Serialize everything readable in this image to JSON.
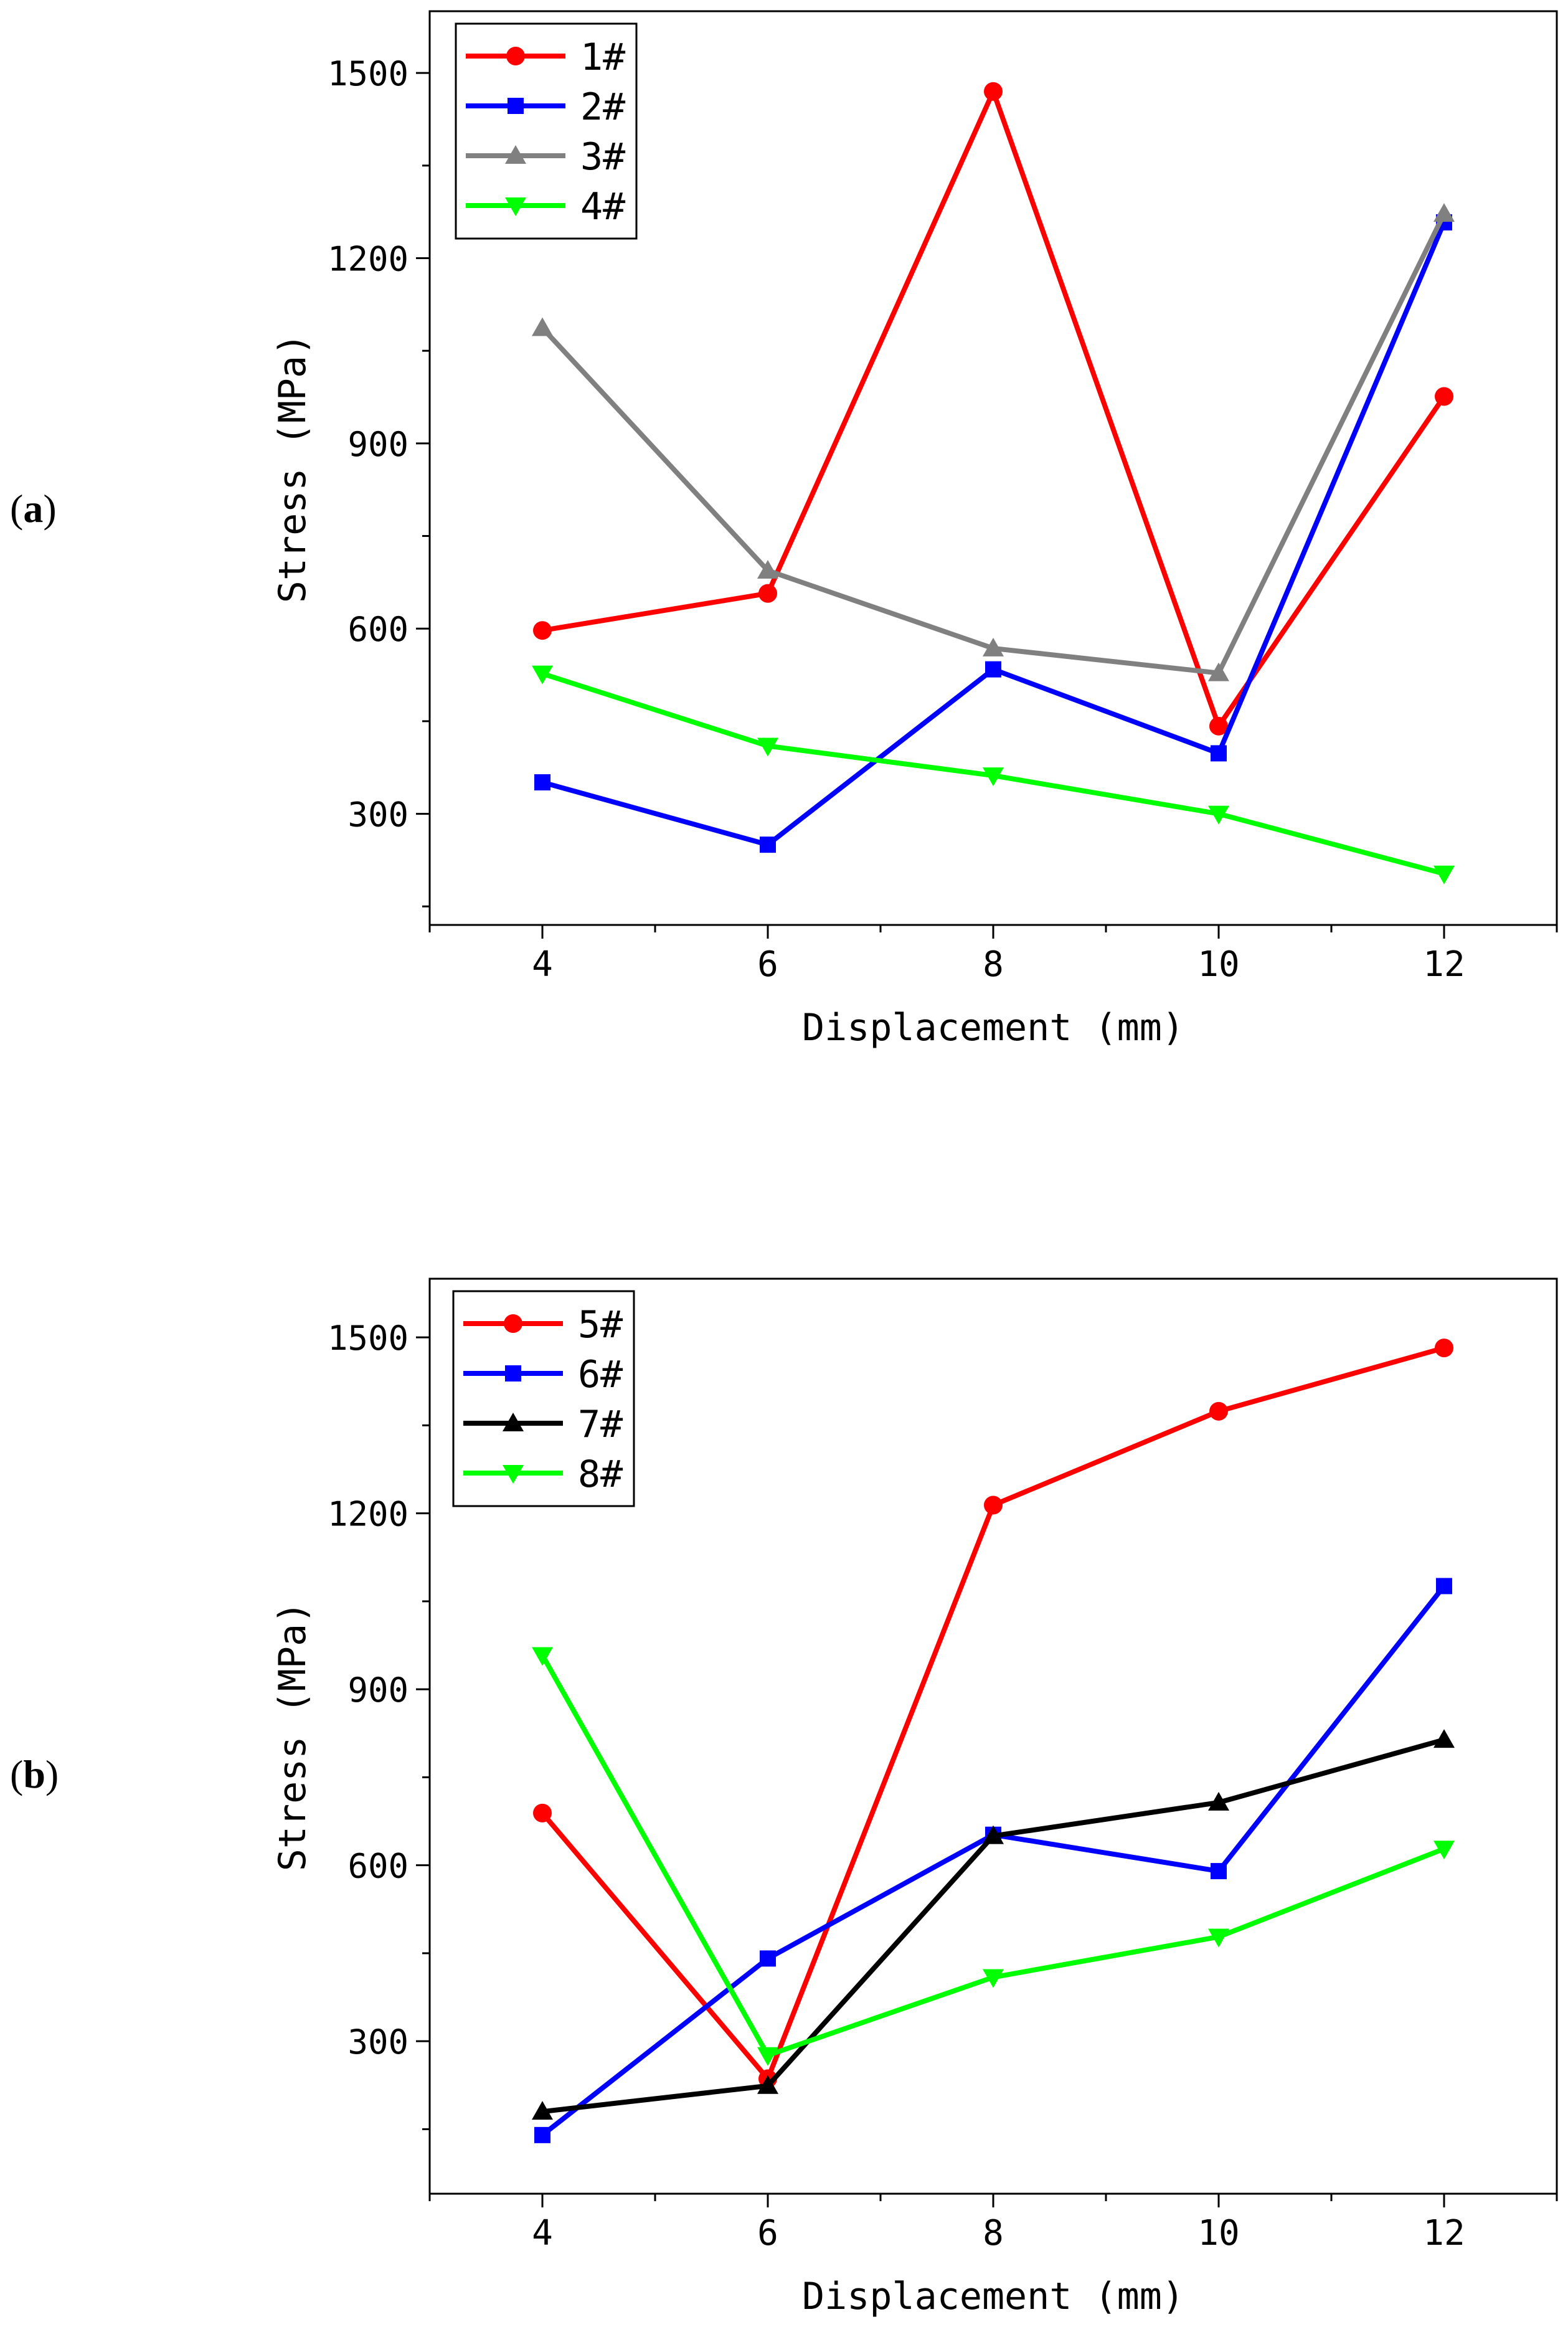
{
  "chart_data": [
    {
      "panel_label": "(a)",
      "panel_letter": "a",
      "type": "line",
      "xlabel": "Displacement (mm)",
      "ylabel": "Stress (MPa)",
      "xlim": [
        3,
        13
      ],
      "ylim": [
        120,
        1600
      ],
      "xticks": [
        4,
        6,
        8,
        10,
        12
      ],
      "yticks": [
        300,
        600,
        900,
        1200,
        1500
      ],
      "x": [
        4,
        6,
        8,
        10,
        12
      ],
      "legend_position": "top-left",
      "series": [
        {
          "name": "1#",
          "color": "#ff0000",
          "marker": "circle",
          "values": [
            597,
            657,
            1470,
            442,
            976
          ]
        },
        {
          "name": "2#",
          "color": "#0000ff",
          "marker": "square",
          "values": [
            351,
            250,
            534,
            398,
            1258
          ]
        },
        {
          "name": "3#",
          "color": "#808080",
          "marker": "triangle-up",
          "values": [
            1087,
            694,
            568,
            528,
            1272
          ]
        },
        {
          "name": "4#",
          "color": "#00ff00",
          "marker": "triangle-down",
          "values": [
            527,
            410,
            362,
            300,
            203
          ]
        }
      ]
    },
    {
      "panel_label": "(b)",
      "panel_letter": "b",
      "type": "line",
      "xlabel": "Displacement (mm)",
      "ylabel": "Stress (MPa)",
      "xlim": [
        3,
        13
      ],
      "ylim": [
        40,
        1600
      ],
      "xticks": [
        4,
        6,
        8,
        10,
        12
      ],
      "yticks": [
        300,
        600,
        900,
        1200,
        1500
      ],
      "x": [
        4,
        6,
        8,
        10,
        12
      ],
      "legend_position": "top-left",
      "series": [
        {
          "name": "5#",
          "color": "#ff0000",
          "marker": "circle",
          "values": [
            689,
            236,
            1214,
            1374,
            1482
          ]
        },
        {
          "name": "6#",
          "color": "#0000ff",
          "marker": "square",
          "values": [
            140,
            441,
            652,
            590,
            1076
          ]
        },
        {
          "name": "7#",
          "color": "#000000",
          "marker": "triangle-up",
          "values": [
            180,
            224,
            650,
            707,
            814
          ]
        },
        {
          "name": "8#",
          "color": "#00ff00",
          "marker": "triangle-down",
          "values": [
            958,
            276,
            409,
            478,
            628
          ]
        }
      ]
    }
  ]
}
